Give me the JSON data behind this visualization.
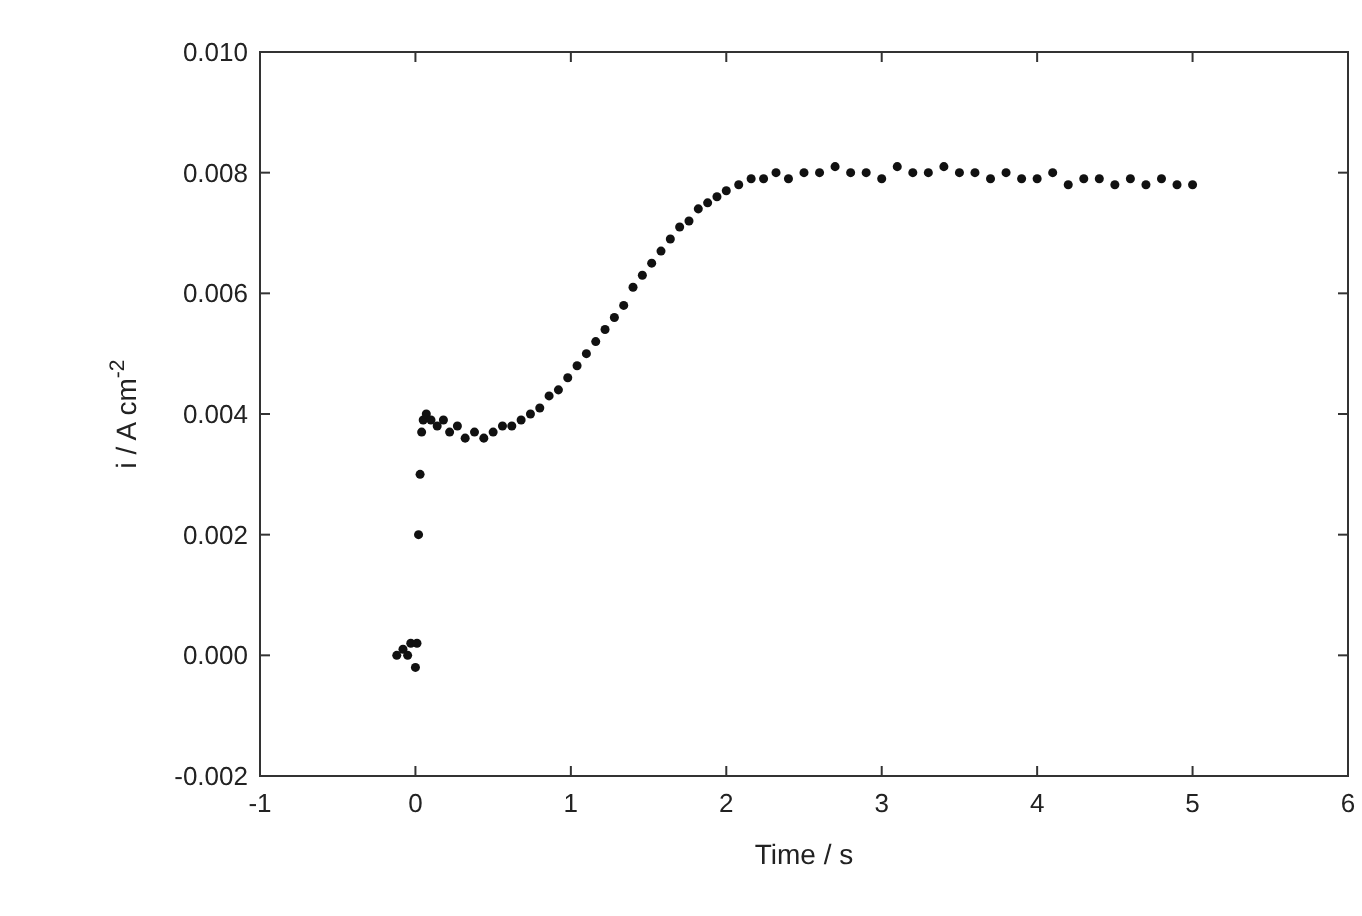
{
  "chart_data": {
    "type": "scatter",
    "xlabel": "Time / s",
    "ylabel": "i / A cm$^{-2}$",
    "marker": "circle",
    "grid": false,
    "xlim": [
      -1,
      6
    ],
    "xticks": [
      -1,
      0,
      1,
      2,
      3,
      4,
      5,
      6
    ],
    "ylim": [
      -0.002,
      0.01
    ],
    "yticks": [
      {
        "value": -0.002,
        "label": "-0.002"
      },
      {
        "value": 0,
        "label": "0.000"
      },
      {
        "value": 0.002,
        "label": "0.002"
      },
      {
        "value": 0.004,
        "label": "0.004"
      },
      {
        "value": 0.006,
        "label": "0.006"
      },
      {
        "value": 0.008,
        "label": "0.008"
      },
      {
        "value": 0.01,
        "label": "0.010"
      }
    ],
    "series": [
      {
        "color": "#111111",
        "x": [
          -0.12,
          -0.08,
          -0.05,
          -0.03,
          0.0,
          0.01,
          0.02,
          0.03,
          0.04,
          0.05,
          0.07,
          0.1,
          0.14,
          0.18,
          0.22,
          0.27,
          0.32,
          0.38,
          0.44,
          0.5,
          0.56,
          0.62,
          0.68,
          0.74,
          0.8,
          0.86,
          0.92,
          0.98,
          1.04,
          1.1,
          1.16,
          1.22,
          1.28,
          1.34,
          1.4,
          1.46,
          1.52,
          1.58,
          1.64,
          1.7,
          1.76,
          1.82,
          1.88,
          1.94,
          2.0,
          2.08,
          2.16,
          2.24,
          2.32,
          2.4,
          2.5,
          2.6,
          2.7,
          2.8,
          2.9,
          3.0,
          3.1,
          3.2,
          3.3,
          3.4,
          3.5,
          3.6,
          3.7,
          3.8,
          3.9,
          4.0,
          4.1,
          4.2,
          4.3,
          4.4,
          4.5,
          4.6,
          4.7,
          4.8,
          4.9,
          5.0
        ],
        "values": [
          0.0,
          0.0001,
          0.0,
          0.0002,
          -0.0002,
          0.0002,
          0.002,
          0.003,
          0.0037,
          0.0039,
          0.004,
          0.0039,
          0.0038,
          0.0039,
          0.0037,
          0.0038,
          0.0036,
          0.0037,
          0.0036,
          0.0037,
          0.0038,
          0.0038,
          0.0039,
          0.004,
          0.0041,
          0.0043,
          0.0044,
          0.0046,
          0.0048,
          0.005,
          0.0052,
          0.0054,
          0.0056,
          0.0058,
          0.0061,
          0.0063,
          0.0065,
          0.0067,
          0.0069,
          0.0071,
          0.0072,
          0.0074,
          0.0075,
          0.0076,
          0.0077,
          0.0078,
          0.0079,
          0.0079,
          0.008,
          0.0079,
          0.008,
          0.008,
          0.0081,
          0.008,
          0.008,
          0.0079,
          0.0081,
          0.008,
          0.008,
          0.0081,
          0.008,
          0.008,
          0.0079,
          0.008,
          0.0079,
          0.0079,
          0.008,
          0.0078,
          0.0079,
          0.0079,
          0.0078,
          0.0079,
          0.0078,
          0.0079,
          0.0078,
          0.0078
        ]
      }
    ]
  }
}
